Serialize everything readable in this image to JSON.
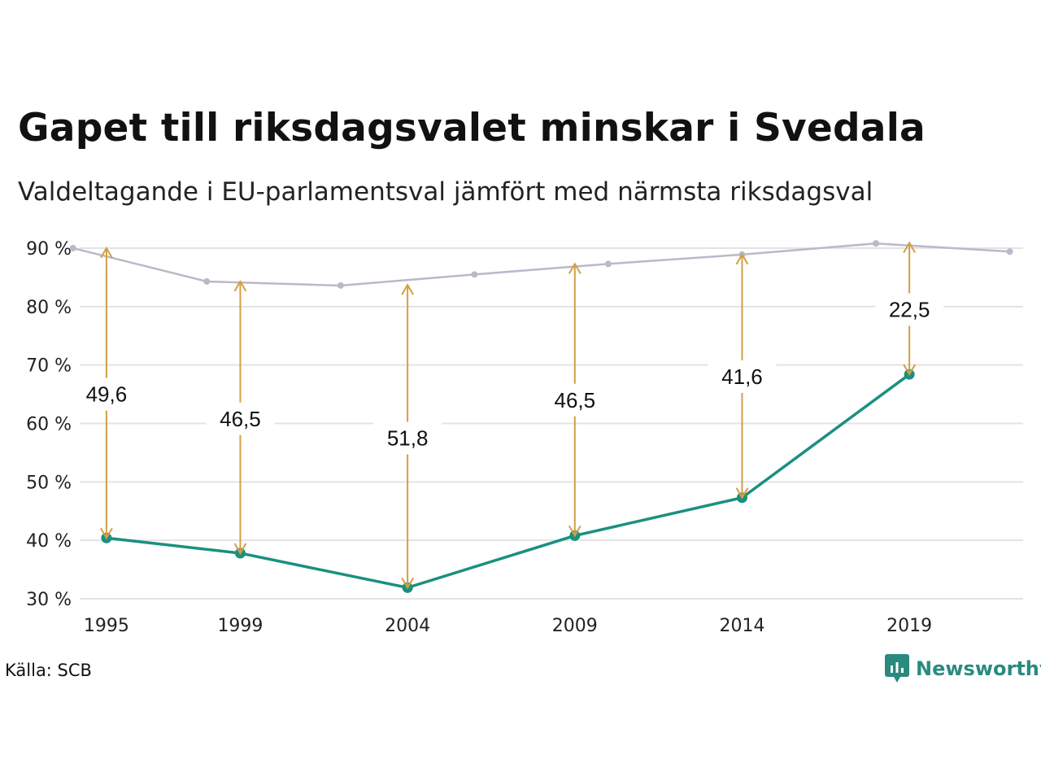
{
  "title": "Gapet till riksdagsvalet minskar i Svedala",
  "subtitle": "Valdeltagande i EU-parlamentsval jämfört med närmsta riksdagsval",
  "source": "Källa: SCB",
  "brand": {
    "name": "Newsworthy",
    "icon": "newsworthy-logo-icon",
    "color": "#2a8a7f"
  },
  "colors": {
    "eu": "#1a9080",
    "riksdag": "#bcb8c8",
    "gap": "#d39f45",
    "grid": "#e3e3e3"
  },
  "chart_data": {
    "type": "line",
    "ylim": [
      30,
      90
    ],
    "y_ticks": [
      {
        "value": 30,
        "label": "30 %"
      },
      {
        "value": 40,
        "label": "40 %"
      },
      {
        "value": 50,
        "label": "50 %"
      },
      {
        "value": 60,
        "label": "60 %"
      },
      {
        "value": 70,
        "label": "70 %"
      },
      {
        "value": 80,
        "label": "80 %"
      },
      {
        "value": 90,
        "label": "90 %"
      }
    ],
    "x_range": [
      1994.2,
      2022.4
    ],
    "x_ticks": [
      1995,
      1999,
      2004,
      2009,
      2014,
      2019
    ],
    "grid": true,
    "series": [
      {
        "key": "riksdag",
        "points": [
          {
            "x": 1994,
            "y": 90.0
          },
          {
            "x": 1998,
            "y": 84.3
          },
          {
            "x": 2002,
            "y": 83.6
          },
          {
            "x": 2006,
            "y": 85.5
          },
          {
            "x": 2010,
            "y": 87.3
          },
          {
            "x": 2014,
            "y": 88.9
          },
          {
            "x": 2018,
            "y": 90.8
          },
          {
            "x": 2022,
            "y": 89.4
          }
        ]
      },
      {
        "key": "eu",
        "points": [
          {
            "x": 1995,
            "y": 40.4
          },
          {
            "x": 1999,
            "y": 37.8
          },
          {
            "x": 2004,
            "y": 31.9
          },
          {
            "x": 2009,
            "y": 40.8
          },
          {
            "x": 2014,
            "y": 47.3
          },
          {
            "x": 2019,
            "y": 68.4
          }
        ]
      }
    ],
    "gaps": [
      {
        "x": 1995,
        "from": 40.4,
        "to": 90.0,
        "label": "49,6",
        "label_y": 65
      },
      {
        "x": 1999,
        "from": 37.8,
        "to": 84.3,
        "label": "46,5",
        "label_y": 60.8
      },
      {
        "x": 2004,
        "from": 31.9,
        "to": 83.7,
        "label": "51,8",
        "label_y": 57.5
      },
      {
        "x": 2009,
        "from": 40.8,
        "to": 87.3,
        "label": "46,5",
        "label_y": 64
      },
      {
        "x": 2014,
        "from": 47.3,
        "to": 88.9,
        "label": "41,6",
        "label_y": 68
      },
      {
        "x": 2019,
        "from": 68.4,
        "to": 90.9,
        "label": "22,5",
        "label_y": 79.5
      }
    ]
  }
}
